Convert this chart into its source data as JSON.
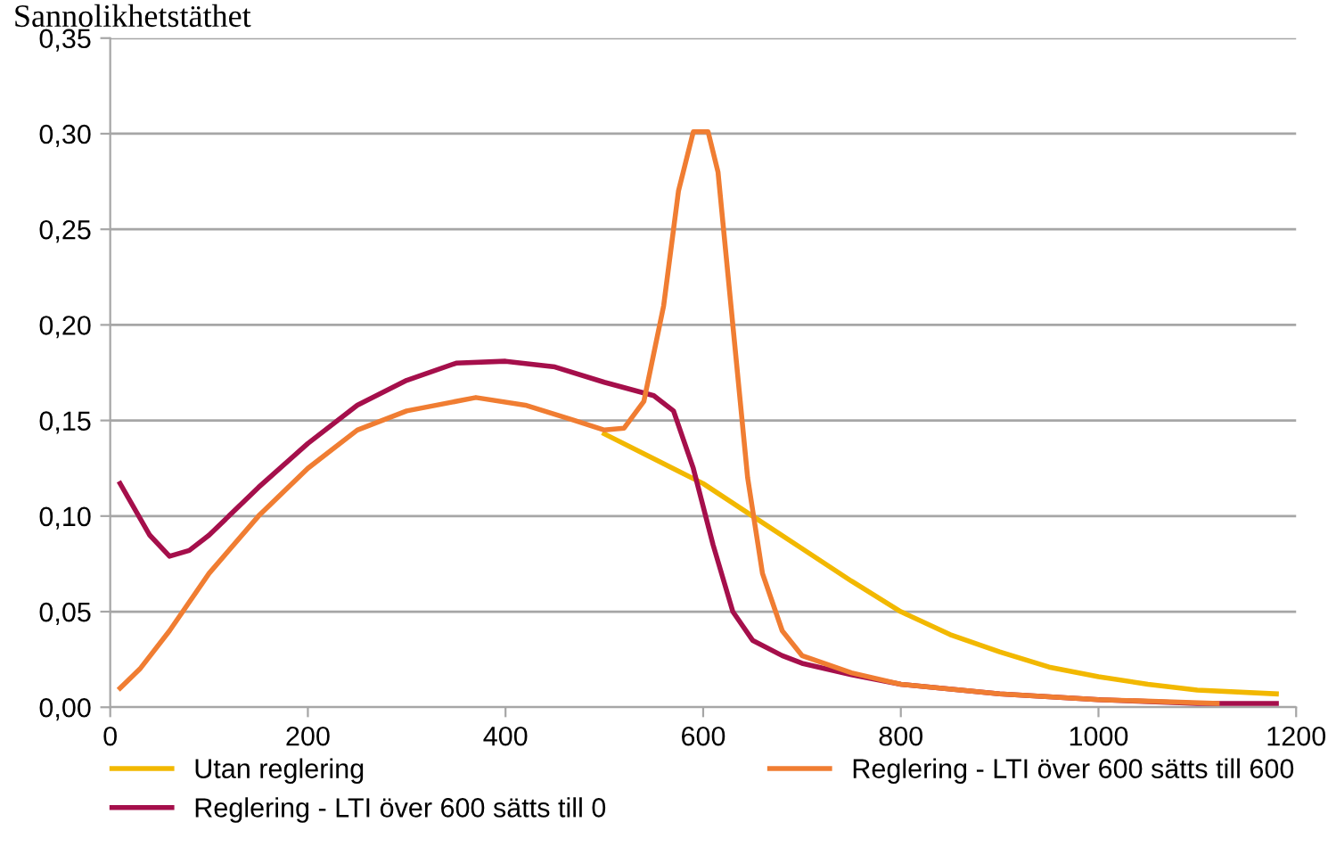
{
  "chart_data": {
    "type": "line",
    "title": "Sannolikhetstäthet",
    "xlim": [
      0,
      1200
    ],
    "xticks": [
      0,
      200,
      400,
      600,
      800,
      1000,
      1200
    ],
    "ylim": [
      0,
      0.35
    ],
    "yticks": [
      {
        "value": 0,
        "label": "0,00"
      },
      {
        "value": 0.05,
        "label": "0,05"
      },
      {
        "value": 0.1,
        "label": "0,10"
      },
      {
        "value": 0.15,
        "label": "0,15"
      },
      {
        "value": 0.2,
        "label": "0,20"
      },
      {
        "value": 0.25,
        "label": "0,25"
      },
      {
        "value": 0.3,
        "label": "0,30"
      },
      {
        "value": 0.35,
        "label": "0,35"
      }
    ],
    "grid": "y",
    "legend": "bottom",
    "marker": "none",
    "line_style": "solid",
    "series": [
      {
        "name": "Utan reglering",
        "color": "#f2b800",
        "x": [
          500,
          550,
          600,
          650,
          700,
          750,
          800,
          850,
          900,
          950,
          1000,
          1050,
          1100,
          1180
        ],
        "values": [
          0.143,
          0.13,
          0.117,
          0.1,
          0.083,
          0.066,
          0.05,
          0.038,
          0.029,
          0.021,
          0.016,
          0.012,
          0.009,
          0.007
        ]
      },
      {
        "name": "Reglering - LTI över 600 sätts till 0",
        "color": "#a50f4b",
        "x": [
          10,
          40,
          60,
          80,
          100,
          150,
          200,
          250,
          300,
          350,
          400,
          450,
          500,
          550,
          570,
          590,
          610,
          630,
          650,
          680,
          700,
          750,
          800,
          900,
          1000,
          1100,
          1180
        ],
        "values": [
          0.117,
          0.09,
          0.079,
          0.082,
          0.09,
          0.115,
          0.138,
          0.158,
          0.171,
          0.18,
          0.181,
          0.178,
          0.17,
          0.163,
          0.155,
          0.125,
          0.085,
          0.05,
          0.035,
          0.027,
          0.023,
          0.017,
          0.012,
          0.007,
          0.004,
          0.002,
          0.002
        ]
      },
      {
        "name": "Reglering - LTI över 600 sätts till 600",
        "color": "#f07d32",
        "x": [
          10,
          30,
          60,
          100,
          150,
          200,
          250,
          300,
          370,
          420,
          470,
          500,
          520,
          540,
          560,
          575,
          590,
          605,
          615,
          630,
          645,
          660,
          680,
          700,
          750,
          800,
          900,
          1000,
          1120
        ],
        "values": [
          0.01,
          0.02,
          0.04,
          0.07,
          0.1,
          0.125,
          0.145,
          0.155,
          0.162,
          0.158,
          0.15,
          0.145,
          0.146,
          0.16,
          0.21,
          0.27,
          0.301,
          0.301,
          0.28,
          0.2,
          0.12,
          0.07,
          0.04,
          0.027,
          0.018,
          0.012,
          0.007,
          0.004,
          0.002
        ]
      }
    ]
  }
}
